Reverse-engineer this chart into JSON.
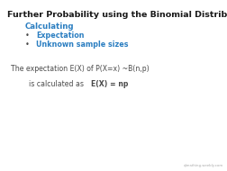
{
  "title": "Further Probability using the Binomial Distribution",
  "section_header": "Calculating",
  "bullet1": "Expectation",
  "bullet2": "Unknown sample sizes",
  "line1": "The expectation E(X) of P(X=x) ~B(n,p)",
  "line2_prefix": "is calculated as ",
  "line2_bold": "E(X) = np",
  "watermark": "qlmathing.weebly.com",
  "bg_color": "#ffffff",
  "title_color": "#1a1a1a",
  "blue_color": "#2b7ec1",
  "body_color": "#4a4a4a",
  "title_fontsize": 6.8,
  "header_fontsize": 6.2,
  "bullet_fontsize": 5.8,
  "body_fontsize": 5.6,
  "watermark_fontsize": 2.8
}
